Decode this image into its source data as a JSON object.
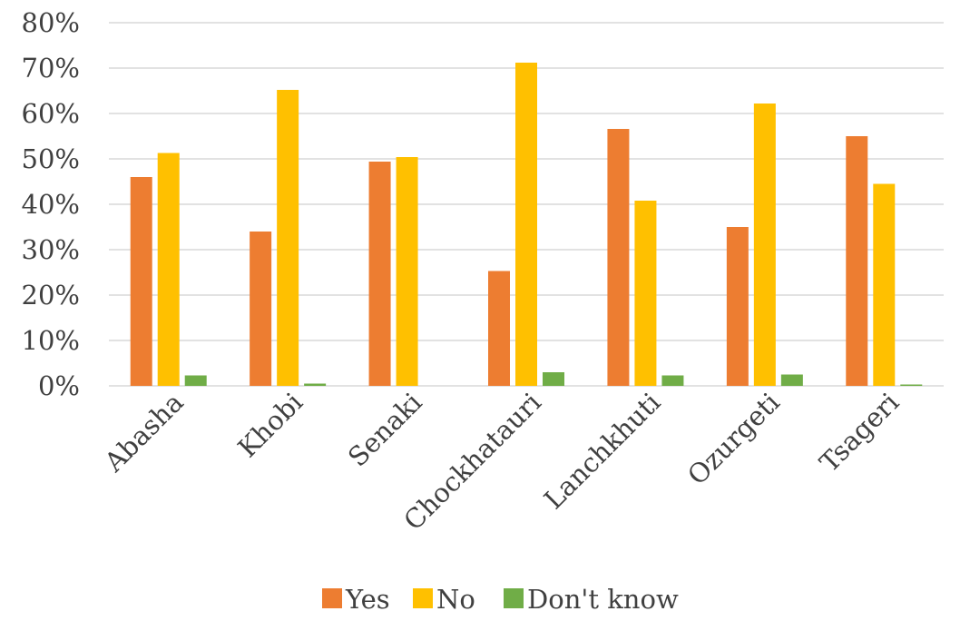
{
  "chart_data": {
    "type": "bar",
    "title": "",
    "xlabel": "",
    "ylabel": "",
    "ylim": [
      0,
      80
    ],
    "yticks": [
      "0%",
      "10%",
      "20%",
      "30%",
      "40%",
      "50%",
      "60%",
      "70%",
      "80%"
    ],
    "grid": true,
    "legend_position": "bottom",
    "categories": [
      "Abasha",
      "Khobi",
      "Senaki",
      "Chockhatauri",
      "Lanchkhuti",
      "Ozurgeti",
      "Tsageri"
    ],
    "series": [
      {
        "name": "Yes",
        "color": "#ED7D31",
        "values": [
          46,
          34,
          49.4,
          25.3,
          56.6,
          35,
          55
        ]
      },
      {
        "name": "No",
        "color": "#FFC000",
        "values": [
          51.3,
          65.2,
          50.4,
          71.2,
          40.8,
          62.2,
          44.5
        ]
      },
      {
        "name": "Don't know",
        "color": "#70AD47",
        "values": [
          2.3,
          0.5,
          0,
          3,
          2.3,
          2.5,
          0.3
        ]
      }
    ]
  }
}
